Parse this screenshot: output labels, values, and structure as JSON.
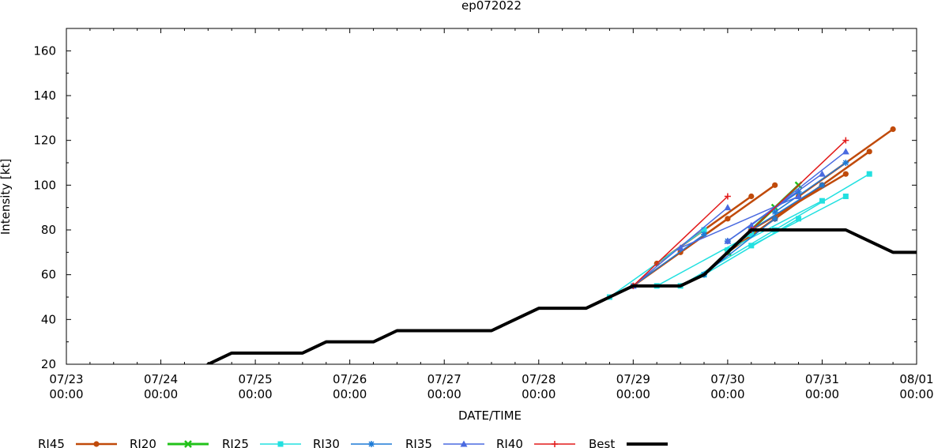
{
  "chart_data": {
    "type": "line",
    "title": "ep072022",
    "xlabel": "DATE/TIME",
    "ylabel": "Intensity [kt]",
    "xlim": [
      "07/23 00:00",
      "08/01 00:00"
    ],
    "ylim": [
      20,
      170
    ],
    "yticks": [
      20,
      40,
      60,
      80,
      100,
      120,
      140,
      160
    ],
    "xticks": [
      {
        "date": "07/23",
        "time": "00:00",
        "day": 0
      },
      {
        "date": "07/24",
        "time": "00:00",
        "day": 1
      },
      {
        "date": "07/25",
        "time": "00:00",
        "day": 2
      },
      {
        "date": "07/26",
        "time": "00:00",
        "day": 3
      },
      {
        "date": "07/27",
        "time": "00:00",
        "day": 4
      },
      {
        "date": "07/28",
        "time": "00:00",
        "day": 5
      },
      {
        "date": "07/29",
        "time": "00:00",
        "day": 6
      },
      {
        "date": "07/30",
        "time": "00:00",
        "day": 7
      },
      {
        "date": "07/31",
        "time": "00:00",
        "day": 8
      },
      {
        "date": "08/01",
        "time": "00:00",
        "day": 9
      }
    ],
    "legend_position": "bottom",
    "series": [
      {
        "name": "RI45",
        "color": "#c04a0a",
        "marker": "circle",
        "width": 2.5,
        "lines": [
          [
            [
              6.0,
              55
            ],
            [
              7.0,
              85
            ]
          ],
          [
            [
              6.25,
              65
            ],
            [
              7.25,
              95
            ]
          ],
          [
            [
              6.5,
              70
            ],
            [
              7.5,
              100
            ]
          ],
          [
            [
              7.25,
              80
            ],
            [
              8.25,
              105
            ]
          ],
          [
            [
              7.5,
              85
            ],
            [
              8.5,
              115
            ]
          ],
          [
            [
              7.75,
              95
            ],
            [
              8.75,
              125
            ]
          ],
          [
            [
              7.0,
              70
            ],
            [
              8.0,
              100
            ]
          ]
        ]
      },
      {
        "name": "RI20",
        "color": "#22c21a",
        "marker": "cross",
        "width": 3,
        "lines": [
          [
            [
              7.25,
              80
            ],
            [
              7.75,
              100
            ]
          ],
          [
            [
              7.0,
              70
            ],
            [
              7.5,
              90
            ]
          ]
        ]
      },
      {
        "name": "RI25",
        "color": "#22e0e0",
        "marker": "square",
        "width": 1.5,
        "lines": [
          [
            [
              5.75,
              50
            ],
            [
              6.75,
              80
            ]
          ],
          [
            [
              6.25,
              55
            ],
            [
              7.25,
              78
            ]
          ],
          [
            [
              6.5,
              55
            ],
            [
              7.5,
              80
            ]
          ],
          [
            [
              6.75,
              60
            ],
            [
              7.75,
              85
            ]
          ],
          [
            [
              7.0,
              71
            ],
            [
              8.0,
              93
            ]
          ],
          [
            [
              7.25,
              73
            ],
            [
              8.25,
              95
            ]
          ],
          [
            [
              7.5,
              80
            ],
            [
              8.5,
              105
            ]
          ]
        ]
      },
      {
        "name": "RI30",
        "color": "#1c7ad6",
        "marker": "star",
        "width": 1.5,
        "lines": [
          [
            [
              6.0,
              55
            ],
            [
              6.75,
              78
            ]
          ],
          [
            [
              6.75,
              60
            ],
            [
              7.5,
              85
            ]
          ],
          [
            [
              7.0,
              75
            ],
            [
              7.75,
              97
            ]
          ],
          [
            [
              7.5,
              88
            ],
            [
              8.25,
              110
            ]
          ],
          [
            [
              7.25,
              80
            ],
            [
              8.0,
              100
            ]
          ]
        ]
      },
      {
        "name": "RI35",
        "color": "#4a6ae0",
        "marker": "triangle",
        "width": 1.5,
        "lines": [
          [
            [
              6.0,
              55
            ],
            [
              7.0,
              90
            ]
          ],
          [
            [
              7.25,
              82
            ],
            [
              8.25,
              115
            ]
          ],
          [
            [
              7.0,
              75
            ],
            [
              8.0,
              105
            ]
          ],
          [
            [
              6.5,
              72
            ],
            [
              7.75,
              95
            ]
          ]
        ]
      },
      {
        "name": "RI40",
        "color": "#e21a1a",
        "marker": "plus",
        "width": 1.5,
        "lines": [
          [
            [
              6.0,
              55
            ],
            [
              7.0,
              95
            ]
          ],
          [
            [
              7.25,
              80
            ],
            [
              8.25,
              120
            ]
          ]
        ]
      },
      {
        "name": "Best",
        "color": "#000000",
        "marker": "none",
        "width": 4,
        "lines": [
          [
            [
              1.5,
              20
            ],
            [
              1.75,
              25
            ],
            [
              2.0,
              25
            ],
            [
              2.25,
              25
            ],
            [
              2.5,
              25
            ],
            [
              2.75,
              30
            ],
            [
              3.0,
              30
            ],
            [
              3.25,
              30
            ],
            [
              3.5,
              35
            ],
            [
              3.75,
              35
            ],
            [
              4.0,
              35
            ],
            [
              4.25,
              35
            ],
            [
              4.5,
              35
            ],
            [
              4.75,
              40
            ],
            [
              5.0,
              45
            ],
            [
              5.25,
              45
            ],
            [
              5.5,
              45
            ],
            [
              5.75,
              50
            ],
            [
              6.0,
              55
            ],
            [
              6.25,
              55
            ],
            [
              6.5,
              55
            ],
            [
              6.75,
              60
            ],
            [
              7.0,
              70
            ],
            [
              7.25,
              80
            ],
            [
              7.5,
              80
            ],
            [
              7.75,
              80
            ],
            [
              8.0,
              80
            ],
            [
              8.25,
              80
            ],
            [
              8.5,
              75
            ],
            [
              8.75,
              70
            ],
            [
              9.0,
              70
            ]
          ]
        ]
      }
    ]
  }
}
